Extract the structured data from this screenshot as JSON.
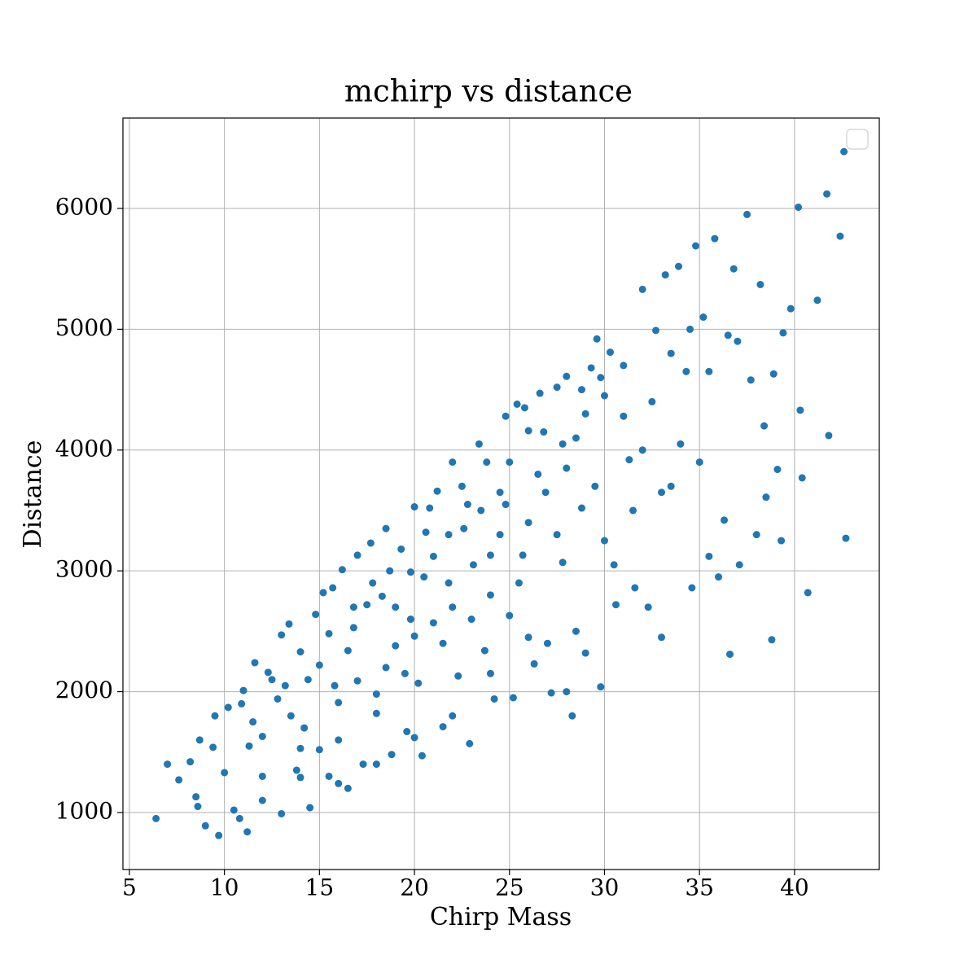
{
  "chart_data": {
    "type": "scatter",
    "title": "mchirp vs distance",
    "xlabel": "Chirp Mass",
    "ylabel": "Distance",
    "color": "#1f77b4",
    "grid": true,
    "legend": "upper right",
    "xlim": [
      4.66,
      44.46
    ],
    "ylim": [
      528,
      6748
    ],
    "xticks": [
      5,
      10,
      15,
      20,
      25,
      30,
      35,
      40
    ],
    "yticks": [
      1000,
      2000,
      3000,
      4000,
      5000,
      6000
    ],
    "x": [
      6.4,
      7,
      7.6,
      8.2,
      8.5,
      8.6,
      8.7,
      9,
      9.4,
      9.5,
      9.7,
      10,
      10.2,
      10.5,
      10.8,
      11,
      11.2,
      11.3,
      11.6,
      12,
      12.5,
      12.8,
      13,
      13,
      13.4,
      13.8,
      14,
      14.2,
      14.5,
      14.8,
      15,
      15.2,
      15.5,
      15.7,
      16,
      16.2,
      16.5,
      16.8,
      17,
      17.3,
      17.7,
      18,
      18.3,
      18.5,
      18.8,
      19,
      19.3,
      19.6,
      19.8,
      20,
      20.2,
      20.4,
      20.6,
      21,
      21.2,
      21.5,
      21.8,
      22,
      22.3,
      22.6,
      22.9,
      23.1,
      23.4,
      23.7,
      24,
      24.2,
      24.5,
      24.8,
      25,
      25.2,
      25.4,
      25.7,
      26,
      26.3,
      26.6,
      26.9,
      27.2,
      27.5,
      27.8,
      28,
      28.3,
      28.5,
      28.8,
      29,
      29.3,
      29.6,
      29.8,
      30,
      30.3,
      30.6,
      31,
      31.3,
      31.6,
      32,
      32.3,
      32.7,
      33,
      33.2,
      33.5,
      33.9,
      34.3,
      34.6,
      34.8,
      35.2,
      35.5,
      35.8,
      36.3,
      36.6,
      36.8,
      37.1,
      37.5,
      37.7,
      38.2,
      38.5,
      38.8,
      39.1,
      39.4,
      39.8,
      40.2,
      40.4,
      40.7,
      41.2,
      41.7,
      41.8,
      42.4,
      42.6,
      42.7,
      12,
      13.5,
      14,
      15,
      15.5,
      16,
      16.5,
      17,
      17.5,
      18,
      18.5,
      19,
      19.5,
      20,
      20.5,
      21,
      21.5,
      22,
      22.5,
      23,
      23.5,
      24,
      24.5,
      25,
      25.5,
      26,
      26.5,
      27,
      27.5,
      28,
      28.5,
      29,
      29.5,
      30,
      30.5,
      31,
      31.5,
      32,
      32.5,
      33,
      33.5,
      34,
      34.5,
      35,
      35.5,
      36,
      36.5,
      37,
      38,
      38.4,
      38.9,
      39.3,
      40.3,
      10.9,
      11.5,
      12.3,
      13.2,
      14.4,
      15.8,
      16.8,
      17.8,
      18.7,
      19.8,
      20.8,
      21.8,
      22.8,
      23.8,
      24.8,
      25.8,
      26.8,
      27.8,
      28.8,
      29.8,
      24,
      26,
      28,
      22,
      20,
      18,
      16,
      14,
      12
    ],
    "y": [
      950,
      1400,
      1270,
      1420,
      1130,
      1050,
      1600,
      890,
      1540,
      1800,
      810,
      1330,
      1870,
      1020,
      950,
      2010,
      840,
      1550,
      2240,
      1630,
      2100,
      1940,
      990,
      2470,
      2560,
      1350,
      2330,
      1700,
      1040,
      2640,
      2220,
      2820,
      1300,
      2860,
      1910,
      3010,
      1200,
      2530,
      3130,
      1400,
      3230,
      1980,
      2790,
      3350,
      1480,
      2380,
      3180,
      1670,
      2990,
      3530,
      2070,
      1470,
      3320,
      2570,
      3660,
      1710,
      2900,
      3900,
      2130,
      3350,
      1570,
      3050,
      4050,
      2340,
      3130,
      1940,
      3650,
      4280,
      2630,
      1950,
      4380,
      3130,
      4160,
      2230,
      4470,
      3650,
      1990,
      4520,
      3070,
      4610,
      1800,
      4100,
      3520,
      2320,
      4680,
      4920,
      2040,
      3250,
      4810,
      2720,
      4280,
      3920,
      2860,
      5330,
      2700,
      4990,
      2450,
      5450,
      3700,
      5520,
      4650,
      2860,
      5690,
      5100,
      3120,
      5750,
      3420,
      2310,
      5500,
      3050,
      5950,
      4580,
      5370,
      3610,
      2430,
      3840,
      4970,
      5170,
      6010,
      3770,
      2820,
      5240,
      6120,
      4120,
      5770,
      6470,
      3270,
      1300,
      1800,
      1530,
      1520,
      2480,
      1600,
      2340,
      2090,
      2720,
      1400,
      2200,
      2700,
      2150,
      2460,
      2950,
      3120,
      2400,
      2700,
      3700,
      2600,
      3500,
      2800,
      3300,
      3900,
      2900,
      3400,
      3800,
      2400,
      3300,
      3850,
      2500,
      4300,
      3700,
      4450,
      3050,
      4700,
      3500,
      4000,
      4400,
      3650,
      4800,
      4050,
      5000,
      3900,
      4650,
      2950,
      4950,
      4900,
      3300,
      4200,
      4630,
      3250,
      4330,
      1900,
      1750,
      2160,
      2050,
      2100,
      2050,
      2700,
      2900,
      3000,
      2600,
      3520,
      3300,
      3550,
      3900,
      3550,
      4350,
      4150,
      4050,
      4500,
      4600,
      2150,
      2450,
      2000,
      1800,
      1620,
      1820,
      1240,
      1290,
      1100
    ]
  }
}
